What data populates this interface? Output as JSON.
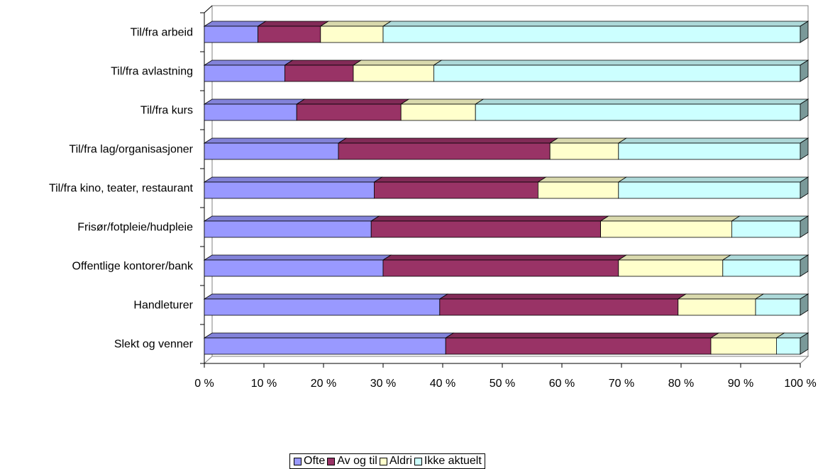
{
  "chart_data": {
    "type": "bar",
    "orientation": "horizontal",
    "stacked": "percent",
    "three_d": true,
    "categories": [
      "Til/fra arbeid",
      "Til/fra avlastning",
      "Til/fra kurs",
      "Til/fra lag/organisasjoner",
      "Til/fra kino, teater, restaurant",
      "Frisør/fotpleie/hudpleie",
      "Offentlige kontorer/bank",
      "Handleturer",
      "Slekt og venner"
    ],
    "series": [
      {
        "name": "Ofte",
        "color": "#9999ff",
        "values": [
          9,
          13.5,
          15.5,
          22.5,
          28.5,
          28,
          30,
          39.5,
          40.5
        ]
      },
      {
        "name": "Av og til",
        "color": "#993366",
        "values": [
          10.5,
          11.5,
          17.5,
          35.5,
          27.5,
          38.5,
          39.5,
          40,
          44.5
        ]
      },
      {
        "name": "Aldri",
        "color": "#ffffcc",
        "values": [
          10.5,
          13.5,
          12.5,
          11.5,
          13.5,
          22,
          17.5,
          13,
          11
        ]
      },
      {
        "name": "Ikke aktuelt",
        "color": "#ccffff",
        "values": [
          70,
          61.5,
          54.5,
          30.5,
          30.5,
          11.5,
          13,
          7.5,
          4
        ]
      }
    ],
    "x_ticks": [
      "0 %",
      "10 %",
      "20 %",
      "30 %",
      "40 %",
      "50 %",
      "60 %",
      "70 %",
      "80 %",
      "90 %",
      "100 %"
    ],
    "xlim": [
      0,
      100
    ],
    "title": "",
    "xlabel": "",
    "ylabel": "",
    "grid": false,
    "legend_position": "bottom"
  }
}
